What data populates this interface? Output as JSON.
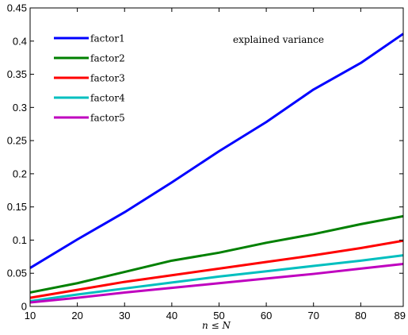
{
  "chart_data": {
    "type": "line",
    "title": "",
    "annotation": "explained variance",
    "xlabel": "n ≤ N",
    "ylabel": "",
    "x": [
      10,
      20,
      30,
      40,
      50,
      60,
      70,
      80,
      89
    ],
    "xlim": [
      10,
      89
    ],
    "ylim": [
      0,
      0.45
    ],
    "xticks": [
      10,
      20,
      30,
      40,
      50,
      60,
      70,
      80,
      89
    ],
    "yticks": [
      0,
      0.05,
      0.1,
      0.15,
      0.2,
      0.25,
      0.3,
      0.35,
      0.4,
      0.45
    ],
    "grid": false,
    "legend_position": "top-left",
    "series": [
      {
        "name": "factor1",
        "color": "#0000ff",
        "values": [
          0.058,
          0.101,
          0.142,
          0.187,
          0.234,
          0.278,
          0.327,
          0.367,
          0.411
        ]
      },
      {
        "name": "factor2",
        "color": "#008000",
        "values": [
          0.021,
          0.035,
          0.052,
          0.069,
          0.081,
          0.096,
          0.109,
          0.124,
          0.136
        ]
      },
      {
        "name": "factor3",
        "color": "#ff0000",
        "values": [
          0.013,
          0.025,
          0.037,
          0.047,
          0.057,
          0.067,
          0.077,
          0.088,
          0.099
        ]
      },
      {
        "name": "factor4",
        "color": "#00bfbf",
        "values": [
          0.008,
          0.018,
          0.027,
          0.036,
          0.045,
          0.053,
          0.061,
          0.069,
          0.077
        ]
      },
      {
        "name": "factor5",
        "color": "#bf00bf",
        "values": [
          0.006,
          0.013,
          0.021,
          0.028,
          0.035,
          0.042,
          0.049,
          0.057,
          0.064
        ]
      }
    ]
  }
}
